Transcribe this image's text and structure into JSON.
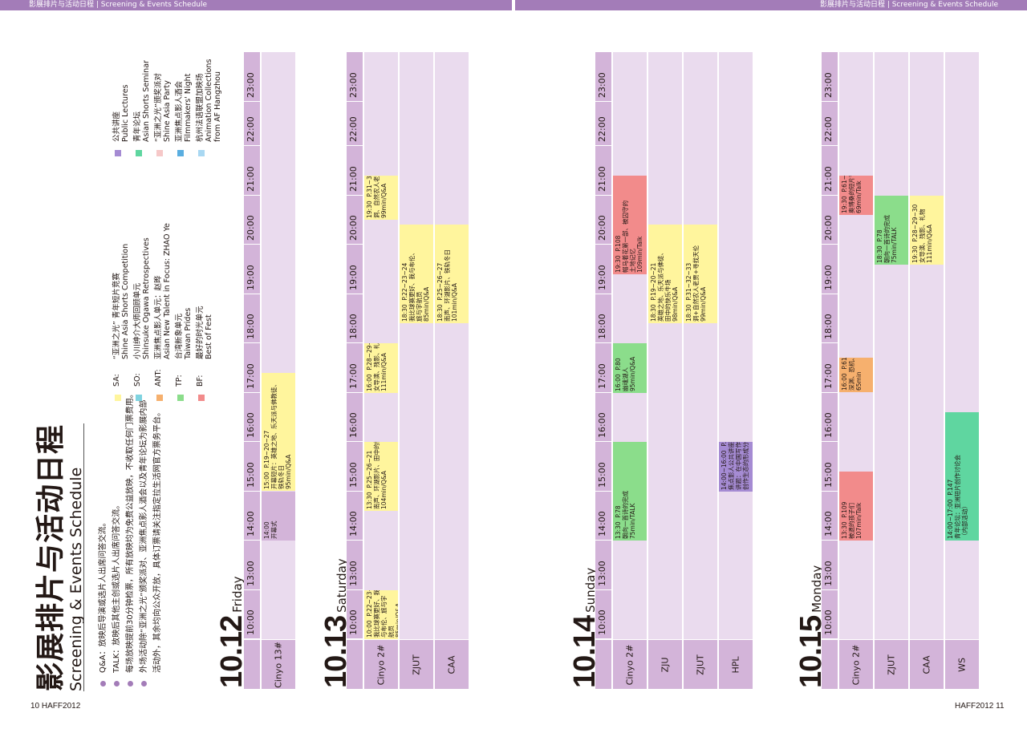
{
  "header": {
    "left": "影展排片与活动日程 | Screening & Events Schedule",
    "right": "影展排片与活动日程 | Screening & Events Schedule"
  },
  "folio": {
    "left": "10 HAFF2012",
    "right": "HAFF2012 11"
  },
  "title": {
    "zh": "影展排片与活动日程",
    "en": "Screening & Events Schedule"
  },
  "notes": [
    "Q&A：放映后导演或选片人出席问答交流。",
    "TALK：放映后其他主创或选片人出席问答交流。",
    "每场放映提前30分钟检票，所有放映均为免费公益放映，不收取任何门票费用。",
    "外场活动除“亚洲之光”颁奖派对、亚洲焦点影人酒会以及青年论坛为影展内部",
    "活动外，其余均向公众开放，具体订票请关注指定拉生活网官方票务平台。"
  ],
  "legend": [
    {
      "code": "SA:",
      "zh": "“亚洲之光” 青年短片竞赛",
      "en": "Shine Asia Shorts Competition",
      "color": "#fff59d"
    },
    {
      "code": "SO:",
      "zh": "小川绅介大师回顾单元",
      "en": "Shinsuke Ogawa Retrospectives",
      "color": "#7fd3e0"
    },
    {
      "code": "ANT:",
      "zh": "亚洲焦点影人单元：赵晔",
      "en": "Asian New Talent in Focus: ZHAO Ye",
      "color": "#f6b06e"
    },
    {
      "code": "TP:",
      "zh": "台湾新象单元",
      "en": "Taiwan Prides",
      "color": "#8bdd8b"
    },
    {
      "code": "BF:",
      "zh": "最好的时光单元",
      "en": "Best of Fest",
      "color": "#f28b8b"
    }
  ],
  "legend2": [
    {
      "zh": "公共讲座",
      "en": "Public Lectures",
      "color": "#a58bd3"
    },
    {
      "zh": "青年论坛",
      "en": "Asian Shorts Seminar",
      "color": "#5fd6a0"
    },
    {
      "zh": "“亚洲之光”颁奖派对",
      "en": "Shine Asia Party",
      "color": "#f6c8c8"
    },
    {
      "zh": "亚洲焦点影人酒会",
      "en": "Filmmakers' Night",
      "color": "#5aaee0"
    },
    {
      "zh": "杭州法语联盟加映场",
      "en": "Animation Collections from AF Hangzhou",
      "color": "#a9d8f2"
    }
  ],
  "times": [
    "10:00",
    "13:00",
    "14:00",
    "15:00",
    "16:00",
    "17:00",
    "18:00",
    "19:00",
    "20:00",
    "21:00",
    "22:00",
    "23:00"
  ],
  "days": [
    {
      "date": "10.12",
      "weekday": "Friday",
      "venues": [
        "Cinyo 13#"
      ],
      "events": [
        {
          "venue": 0,
          "start": 14.0,
          "end": 15.0,
          "color": "#d3b4d9",
          "text": "14:00\n开幕式"
        },
        {
          "venue": 0,
          "start": 15.0,
          "end": 17.4,
          "color": "#fff59d",
          "text": "15:00  P.19~20~27\n开幕短片：英雄之地、乐天派与佛教徒、\n铁轨冬日\n95min/Q&A"
        }
      ]
    },
    {
      "date": "10.13",
      "weekday": "Saturday",
      "venues": [
        "Cinyo 2#",
        "ZJUT",
        "CAA"
      ],
      "events": [
        {
          "venue": 0,
          "start": 10.0,
          "end": 13.0,
          "color": "#fff59d",
          "text": "10:00  P.22~23~24\n我比球赛更好、我\n与布伦、旅与宇\n航员\n85min/Q&A"
        },
        {
          "venue": 0,
          "start": 14.6,
          "end": 16.0,
          "color": "#fff59d",
          "text": "13:30  P.25~26~21\n南声、环湖影片、田中的快乐牛场\n104min/Q&A"
        },
        {
          "venue": 0,
          "start": 17.0,
          "end": 18.0,
          "color": "#fff59d",
          "text": "16:00  P.28~29~30\n女导演、残影、礼物\n111min/Q&A"
        },
        {
          "venue": 0,
          "start": 20.5,
          "end": 21.4,
          "color": "#fff59d",
          "text": "19:30  P.31~32~33\n洞、自然农人老贾、寻找天伦\n99min/Q&A"
        },
        {
          "venue": 1,
          "start": 18.4,
          "end": 20.4,
          "color": "#fff59d",
          "text": "18:30  P.22~23~24\n我比球赛更好、我与布伦、\n旅与宇航员\n85min/Q&A"
        },
        {
          "venue": 2,
          "start": 18.4,
          "end": 20.4,
          "color": "#fff59d",
          "text": "18:30  P.25~26~27\n南声、环湖影片、铁轨冬日\n101min/Q&A"
        }
      ]
    },
    {
      "date": "10.14",
      "weekday": "Sunday",
      "venues": [
        "Cinyo 2#",
        "ZJU",
        "ZJUT",
        "HPL"
      ],
      "events": [
        {
          "venue": 0,
          "start": 14.0,
          "end": 16.0,
          "color": "#8bdd8b",
          "text": "13:30  P.78\n朝向一首诗的完成\n75min/TALK"
        },
        {
          "venue": 0,
          "start": 17.0,
          "end": 18.0,
          "color": "#8bdd8b",
          "text": "16:00  P.80\n幽魂湖人\n95min/Q&A"
        },
        {
          "venue": 0,
          "start": 19.4,
          "end": 21.4,
          "color": "#f28b8b",
          "text": "19:30  P.108\n帽马着花第一部、被囚守的\n土地记忆\n109min/Talk"
        },
        {
          "venue": 1,
          "start": 18.4,
          "end": 20.4,
          "color": "#fff59d",
          "text": "18:30  P.19~20~21\n英雄之地、乐天派与佛徒、\n田中的快乐牛场\n98min/Q&A"
        },
        {
          "venue": 2,
          "start": 18.4,
          "end": 20.4,
          "color": "#fff59d",
          "text": "18:30  P.31~32~33\n洞+自然农人老贾+寻找天伦\n99min/Q&A"
        },
        {
          "venue": 3,
          "start": 15.0,
          "end": 16.0,
          "color": "#a58bd3",
          "text": "14:00~16:00  P.144\n焦点影人公共讲座\n讲题：在中国写作青年影人\n创作生态的形成分析"
        }
      ]
    },
    {
      "date": "10.15",
      "weekday": "Monday",
      "venues": [
        "Cinyo 2#",
        "ZJUT",
        "CAA",
        "WS"
      ],
      "events": [
        {
          "venue": 0,
          "start": 14.0,
          "end": 15.4,
          "color": "#f28b8b",
          "text": "13:30  P.109\n被遗的孩子们\n107min/Talk"
        },
        {
          "venue": 0,
          "start": 17.0,
          "end": 17.7,
          "color": "#f6b06e",
          "text": "16:00  P.61~60~62\n深渊、恐机、深涵涌\n65min"
        },
        {
          "venue": 0,
          "start": 20.6,
          "end": 21.4,
          "color": "#f28b8b",
          "text": "19:30  P.61~60~62\n奥博桑的短片节第一场\n69min/Talk"
        },
        {
          "venue": 1,
          "start": 19.6,
          "end": 21.0,
          "color": "#8bdd8b",
          "text": "18:30  P.78\n朝向一首诗的完成\n75min/TALK"
        },
        {
          "venue": 2,
          "start": 19.6,
          "end": 21.0,
          "color": "#fff59d",
          "text": "19:30  P.28~29~30\n女导演、残影、礼物\n111min/Q&A"
        },
        {
          "venue": 3,
          "start": 14.0,
          "end": 16.6,
          "color": "#5fd6a0",
          "text": "14:00~17:00  P.147\n青年论坛：亚洲短片创作讨论会\n（内部活动）"
        }
      ]
    }
  ]
}
